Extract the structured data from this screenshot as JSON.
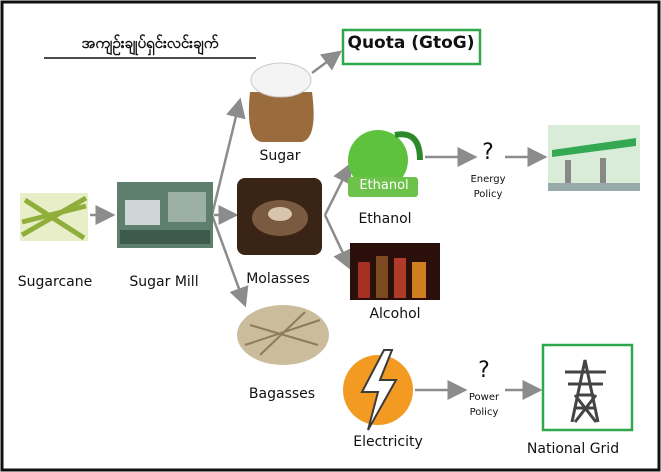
{
  "title": "အကျဉ်းချုပ်ရှင်းလင်းချက်",
  "nodes": [
    {
      "label": "Sugarcane"
    },
    {
      "label": "Sugar Mill"
    },
    {
      "label": "Sugar"
    },
    {
      "label": "Molasses"
    },
    {
      "label": "Bagasses"
    },
    {
      "label": "Ethanol",
      "icon_text": "Ethanol"
    },
    {
      "label": "Alcohol"
    },
    {
      "label": "Electricity"
    },
    {
      "label": "National Grid"
    }
  ],
  "quota": "Quota (GtoG)",
  "policies": [
    {
      "mark": "?",
      "label": "Energy Policy"
    },
    {
      "mark": "?",
      "label": "Power Policy"
    }
  ]
}
